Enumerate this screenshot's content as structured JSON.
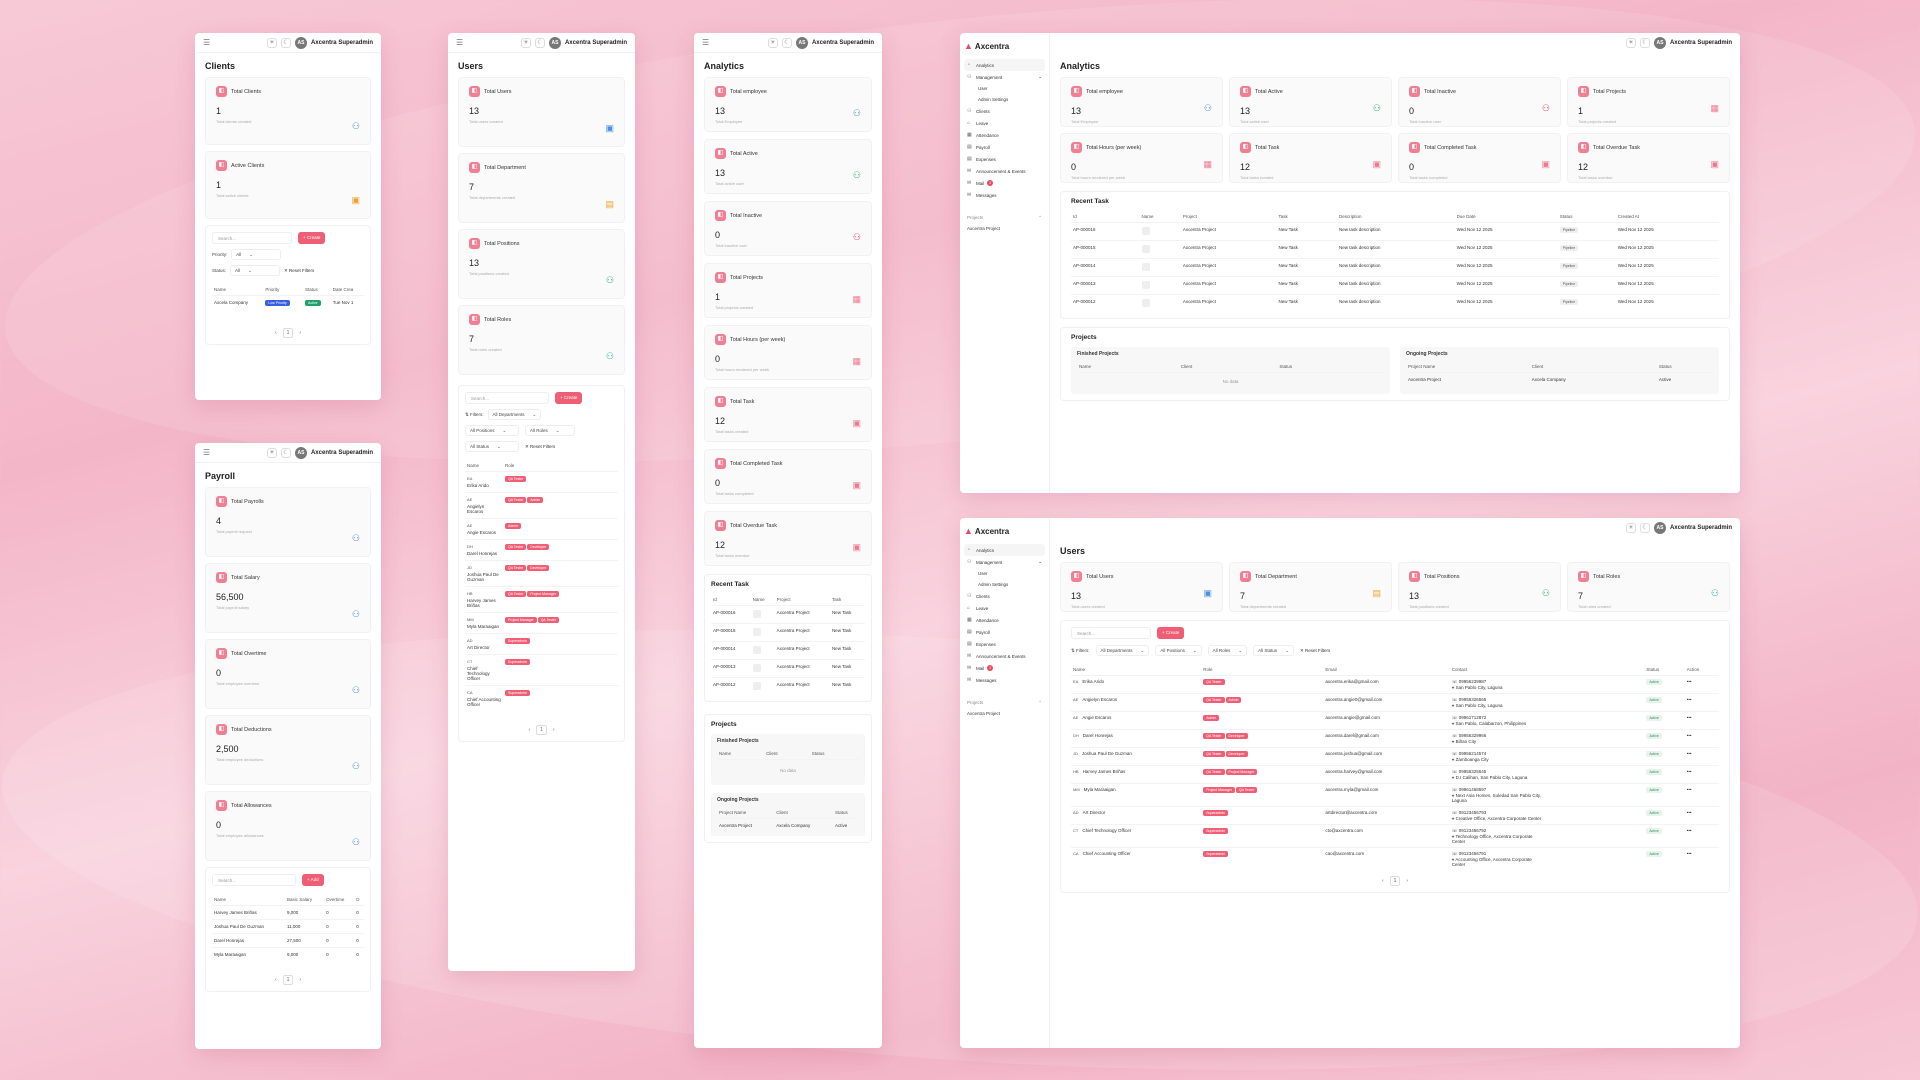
{
  "user": {
    "initials": "AS",
    "name": "Axcentra Superadmin"
  },
  "brand": "Axcentra",
  "sidebar": {
    "items": [
      "Analytics",
      "Management",
      "User",
      "Admin Settings",
      "Clients",
      "Leave",
      "Attendance",
      "Payroll",
      "Expenses",
      "Announcement & Events",
      "Mail",
      "Messages"
    ],
    "mail_badge": "2",
    "projects_label": "Projects",
    "project_item": "Axcentra Project"
  },
  "clients": {
    "title": "Clients",
    "stats": [
      {
        "label": "Total Clients",
        "value": "1",
        "sub": "Total clients created"
      },
      {
        "label": "Active Clients",
        "value": "1",
        "sub": "Total active clients"
      }
    ],
    "search_placeholder": "Search...",
    "create": "+ Create",
    "priority_label": "Priority:",
    "priority_value": "All",
    "status_label": "Status:",
    "status_value": "All",
    "reset": "Reset Filters",
    "columns": [
      "Name",
      "Priority",
      "Status",
      "Date Crea"
    ],
    "row": {
      "name": "Axcela Company",
      "priority": "Low Priority",
      "status": "Active",
      "date": "Tue Nov 1"
    },
    "page": "1"
  },
  "payroll": {
    "title": "Payroll",
    "stats": [
      {
        "label": "Total Payrolls",
        "value": "4",
        "sub": "Total payroll request"
      },
      {
        "label": "Total Salary",
        "value": "56,500",
        "sub": "Total payroll salary"
      },
      {
        "label": "Total Overtime",
        "value": "0",
        "sub": "Total employee overtime"
      },
      {
        "label": "Total Deductions",
        "value": "2,500",
        "sub": "Total employee deductions"
      },
      {
        "label": "Total Allowances",
        "value": "0",
        "sub": "Total employee allowances"
      }
    ],
    "search_placeholder": "Search...",
    "add": "+ Add",
    "columns": [
      "Name",
      "Basic Salary",
      "Overtime",
      "D"
    ],
    "rows": [
      [
        "Harvey James Briñas",
        "9,000",
        "0",
        "0"
      ],
      [
        "Joshua Paul De Guzman",
        "11,000",
        "0",
        "0"
      ],
      [
        "Darel Honrejas",
        "27,500",
        "0",
        "0"
      ],
      [
        "Myla Maraaigan",
        "9,000",
        "0",
        "0"
      ]
    ],
    "page": "1"
  },
  "users_mobile": {
    "title": "Users",
    "stats": [
      {
        "label": "Total Users",
        "value": "13",
        "sub": "Total users created"
      },
      {
        "label": "Total Department",
        "value": "7",
        "sub": "Total departments created"
      },
      {
        "label": "Total Positions",
        "value": "13",
        "sub": "Total positions created"
      },
      {
        "label": "Total Roles",
        "value": "7",
        "sub": "Total roles created"
      }
    ],
    "search_placeholder": "Search...",
    "create": "+ Create",
    "filters_label": "Filters:",
    "f_dept": "All Departments",
    "f_pos": "All Positions",
    "f_roles": "All Roles",
    "f_status": "All Status",
    "reset": "Reset Filters",
    "columns": [
      "Name",
      "Role"
    ],
    "rows": [
      {
        "ini": "EA",
        "name": "Erika Arido",
        "roles": [
          "QA Tester"
        ]
      },
      {
        "ini": "AE",
        "name": "Angielyn Escaros",
        "roles": [
          "QA Tester",
          "Admin"
        ]
      },
      {
        "ini": "AE",
        "name": "Angie Escaros",
        "roles": [
          "Admin"
        ]
      },
      {
        "ini": "DH",
        "name": "Darel Honrejas",
        "roles": [
          "QA Tester",
          "Developer"
        ]
      },
      {
        "ini": "JD",
        "name": "Joshua Paul De Guzman",
        "roles": [
          "QA Tester",
          "Developer"
        ]
      },
      {
        "ini": "HB",
        "name": "Harvey James Briñas",
        "roles": [
          "QA Tester",
          "Project Manager"
        ]
      },
      {
        "ini": "MM",
        "name": "Myla Maraaigan",
        "roles": [
          "Project Manager",
          "QA Tester"
        ]
      },
      {
        "ini": "AD",
        "name": "Art Director",
        "roles": [
          "Superadmin"
        ]
      },
      {
        "ini": "CT",
        "name": "Chief Technology Officer",
        "roles": [
          "Superadmin"
        ]
      },
      {
        "ini": "CA",
        "name": "Chief Accounting Officer",
        "roles": [
          "Superadmin"
        ]
      }
    ],
    "page": "1"
  },
  "analytics_mobile": {
    "title": "Analytics",
    "stats": [
      {
        "label": "Total employee",
        "value": "13",
        "sub": "Total Employee"
      },
      {
        "label": "Total Active",
        "value": "13",
        "sub": "Total active user"
      },
      {
        "label": "Total Inactive",
        "value": "0",
        "sub": "Total inactive user"
      },
      {
        "label": "Total Projects",
        "value": "1",
        "sub": "Total projects created"
      },
      {
        "label": "Total Hours (per week)",
        "value": "0",
        "sub": "Total hours rendered per week"
      },
      {
        "label": "Total Task",
        "value": "12",
        "sub": "Total tasks created"
      },
      {
        "label": "Total Completed Task",
        "value": "0",
        "sub": "Total tasks completed"
      },
      {
        "label": "Total Overdue Task",
        "value": "12",
        "sub": "Total tasks overdue"
      }
    ],
    "recent_title": "Recent Task",
    "recent_columns": [
      "Id",
      "Name",
      "Project",
      "Task"
    ],
    "recent_rows": [
      [
        "AP-000016",
        "",
        "Axcentra Project",
        "New Task"
      ],
      [
        "AP-000015",
        "",
        "Axcentra Project",
        "New Task"
      ],
      [
        "AP-000014",
        "",
        "Axcentra Project",
        "New Task"
      ],
      [
        "AP-000013",
        "",
        "Axcentra Project",
        "New Task"
      ],
      [
        "AP-000012",
        "",
        "Axcentra Project",
        "New Task"
      ]
    ],
    "projects_title": "Projects",
    "finished_title": "Finished Projects",
    "finished_columns": [
      "Name",
      "Client",
      "Status"
    ],
    "no_data": "No data",
    "ongoing_title": "Ongoing Projects",
    "ongoing_columns": [
      "Project Name",
      "Client",
      "Status"
    ],
    "ongoing_row": [
      "Axcentra Project",
      "Axcela Company",
      "Active"
    ]
  },
  "analytics_desktop": {
    "title": "Analytics",
    "recent_columns": [
      "Id",
      "Name",
      "Project",
      "Task",
      "Description",
      "Due Date",
      "Status",
      "Created At"
    ],
    "recent_rows": [
      [
        "AP-000016",
        "",
        "Axcentra Project",
        "New Task",
        "New task description",
        "Wed Nov 12 2025",
        "Pipeline",
        "Wed Nov 12 2025"
      ],
      [
        "AP-000015",
        "",
        "Axcentra Project",
        "New Task",
        "New task description",
        "Wed Nov 12 2025",
        "Pipeline",
        "Wed Nov 12 2025"
      ],
      [
        "AP-000014",
        "",
        "Axcentra Project",
        "New Task",
        "New task description",
        "Wed Nov 12 2025",
        "Pipeline",
        "Wed Nov 12 2025"
      ],
      [
        "AP-000013",
        "",
        "Axcentra Project",
        "New Task",
        "New task description",
        "Wed Nov 12 2025",
        "Pipeline",
        "Wed Nov 12 2025"
      ],
      [
        "AP-000012",
        "",
        "Axcentra Project",
        "New Task",
        "New task description",
        "Wed Nov 12 2025",
        "Pipeline",
        "Wed Nov 12 2025"
      ]
    ]
  },
  "users_desktop": {
    "title": "Users",
    "columns": [
      "Name",
      "Role",
      "Email",
      "Contact",
      "Status",
      "Action"
    ],
    "rows": [
      {
        "ini": "EA",
        "name": "Erika Arido",
        "roles": [
          "QA Tester"
        ],
        "email": "axcentra.erika@gmail.com",
        "phone": "09956239987",
        "addr": "San Pablo City, Laguna"
      },
      {
        "ini": "AE",
        "name": "Angielyn Escaros",
        "roles": [
          "QA Tester",
          "Admin"
        ],
        "email": "axcentra.angie0@gmail.com",
        "phone": "09956326565",
        "addr": "San Pablo City, Laguna"
      },
      {
        "ini": "AE",
        "name": "Angie Escaros",
        "roles": [
          "Admin"
        ],
        "email": "axcentra.angie@gmail.com",
        "phone": "09961712872",
        "addr": "San Pablo, Calabarzon, Philippines"
      },
      {
        "ini": "DH",
        "name": "Darel Honrejas",
        "roles": [
          "QA Tester",
          "Developer"
        ],
        "email": "axcentra.darel@gmail.com",
        "phone": "09956329966",
        "addr": "Biñan City"
      },
      {
        "ini": "JD",
        "name": "Joshua Paul De Guzman",
        "roles": [
          "QA Tester",
          "Developer"
        ],
        "email": "axcentra.joshua@gmail.com",
        "phone": "09956214574",
        "addr": "Zamboanga City"
      },
      {
        "ini": "HB",
        "name": "Harvey James Briñas",
        "roles": [
          "QA Tester",
          "Project Manager"
        ],
        "email": "axcentra.harvey@gmail.com",
        "phone": "09956325645",
        "addr": "D.I Calihan, San Pablo City, Laguna"
      },
      {
        "ini": "MM",
        "name": "Myla Maraaigan",
        "roles": [
          "Project Manager",
          "QA Tester"
        ],
        "email": "axcentra.myla@gmail.com",
        "phone": "09961468597",
        "addr": "Next Asia Homes, Soledad San Pablo City, Laguna"
      },
      {
        "ini": "AD",
        "name": "Art Director",
        "roles": [
          "Superadmin"
        ],
        "email": "artdirector@axcentra.com",
        "phone": "09123456793",
        "addr": "Creative Office, Axcentra Corporate Center"
      },
      {
        "ini": "CT",
        "name": "Chief Technology Officer",
        "roles": [
          "Superadmin"
        ],
        "email": "cto@axcentra.com",
        "phone": "09123456792",
        "addr": "Technology Office, Axcentra Corporate Center"
      },
      {
        "ini": "CA",
        "name": "Chief Accounting Officer",
        "roles": [
          "Superadmin"
        ],
        "email": "cao@axcentra.com",
        "phone": "09123456791",
        "addr": "Accounting Office, Axcentra Corporate Center"
      }
    ],
    "status": "Active",
    "action": "•••"
  }
}
